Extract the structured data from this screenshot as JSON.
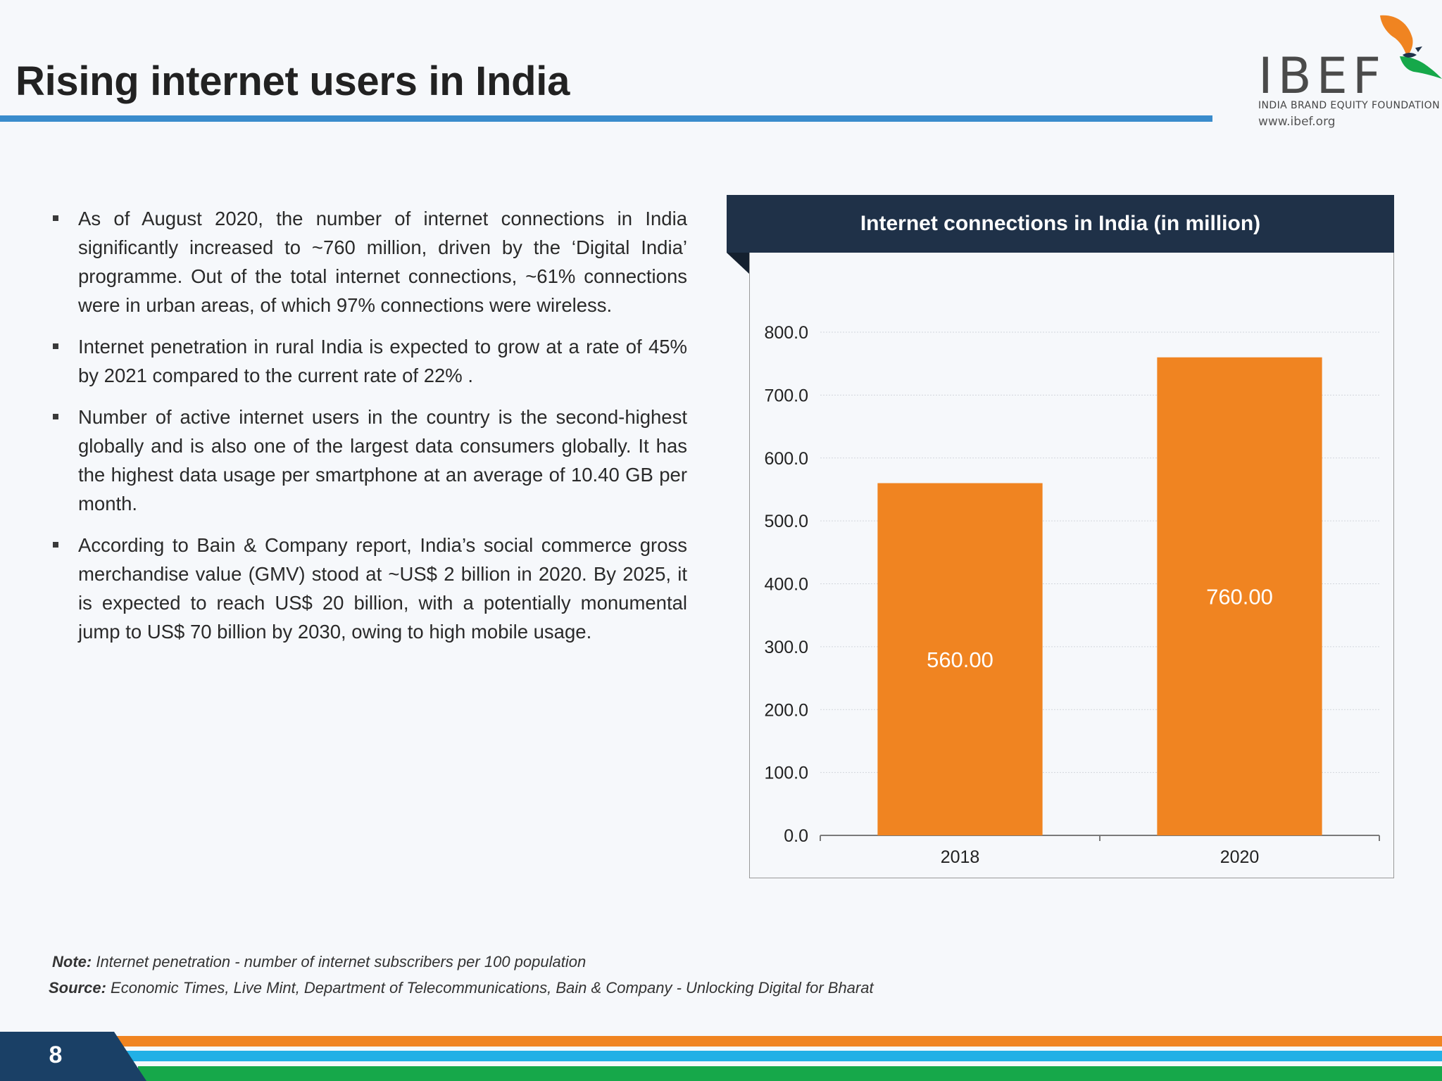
{
  "title": "Rising internet users in India",
  "logo": {
    "name": "IBEF",
    "tagline": "INDIA BRAND EQUITY FOUNDATION",
    "url": "www.ibef.org"
  },
  "bullets": [
    "As of August 2020, the number of internet connections in India significantly increased to ~760 million, driven by the ‘Digital India’ programme. Out of the total internet connections, ~61% connections were in urban areas, of which 97% connections were wireless.",
    "Internet penetration in rural India is expected to grow at a rate of 45% by 2021 compared to the current rate of 22% .",
    "Number of active internet users in the country is the second-highest globally and is also one of the largest data consumers globally. It has the highest data usage per smartphone at an average of 10.40 GB per month.",
    "According to Bain & Company report, India’s social commerce gross merchandise value (GMV) stood at ~US$ 2 billion in 2020. By 2025, it is expected to reach US$ 20 billion, with a potentially monumental jump to US$ 70 billion by 2030, owing to high mobile usage."
  ],
  "chart_data": {
    "type": "bar",
    "title": "Internet connections in India (in million)",
    "categories": [
      "2018",
      "2020"
    ],
    "values": [
      560,
      760
    ],
    "data_labels": [
      "560.00",
      "760.00"
    ],
    "yticks": [
      "0.0",
      "100.0",
      "200.0",
      "300.0",
      "400.0",
      "500.0",
      "600.0",
      "700.0",
      "800.0"
    ],
    "ylim": [
      0,
      800
    ],
    "xlabel": "",
    "ylabel": "",
    "grid": true,
    "legend": "none",
    "bar_color": "#f08421",
    "header_color": "#1f3148"
  },
  "note": {
    "label": "Note:",
    "text": " Internet penetration - number of internet subscribers per 100 population"
  },
  "source": {
    "label": "Source:",
    "text": " Economic Times, Live Mint, Department of Telecommunications, Bain & Company - Unlocking Digital for Bharat"
  },
  "page_number": "8",
  "colors": {
    "title_rule": "#3a8ccc",
    "footer_navy": "#1a4066",
    "footer_orange": "#f08421",
    "footer_cyan": "#22b0e6",
    "footer_green": "#16a84a"
  }
}
